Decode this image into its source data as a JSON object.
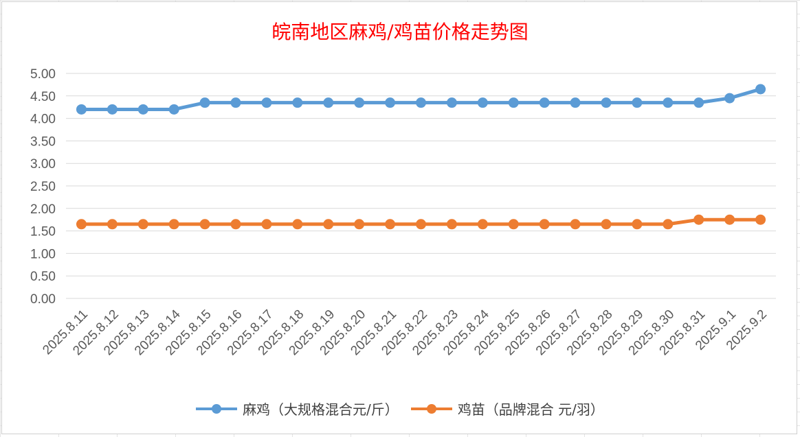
{
  "chart_data": {
    "type": "line",
    "title": "皖南地区麻鸡/鸡苗价格走势图",
    "xlabel": "",
    "ylabel": "",
    "categories": [
      "2025.8.11",
      "2025.8.12",
      "2025.8.13",
      "2025.8.14",
      "2025.8.15",
      "2025.8.16",
      "2025.8.17",
      "2025.8.18",
      "2025.8.19",
      "2025.8.20",
      "2025.8.21",
      "2025.8.22",
      "2025.8.23",
      "2025.8.24",
      "2025.8.25",
      "2025.8.26",
      "2025.8.27",
      "2025.8.28",
      "2025.8.29",
      "2025.8.30",
      "2025.8.31",
      "2025.9.1",
      "2025.9.2"
    ],
    "y_ticks": [
      "0.00",
      "0.50",
      "1.00",
      "1.50",
      "2.00",
      "2.50",
      "3.00",
      "3.50",
      "4.00",
      "4.50",
      "5.00"
    ],
    "ylim": [
      0,
      5
    ],
    "grid": true,
    "legend_position": "bottom",
    "series": [
      {
        "name": "麻鸡（大规格混合元/斤）",
        "color": "#5b9bd5",
        "values": [
          4.2,
          4.2,
          4.2,
          4.2,
          4.35,
          4.35,
          4.35,
          4.35,
          4.35,
          4.35,
          4.35,
          4.35,
          4.35,
          4.35,
          4.35,
          4.35,
          4.35,
          4.35,
          4.35,
          4.35,
          4.35,
          4.45,
          4.65
        ]
      },
      {
        "name": "鸡苗（品牌混合 元/羽）",
        "color": "#ed7d31",
        "values": [
          1.65,
          1.65,
          1.65,
          1.65,
          1.65,
          1.65,
          1.65,
          1.65,
          1.65,
          1.65,
          1.65,
          1.65,
          1.65,
          1.65,
          1.65,
          1.65,
          1.65,
          1.65,
          1.65,
          1.65,
          1.75,
          1.75,
          1.75
        ]
      }
    ]
  }
}
